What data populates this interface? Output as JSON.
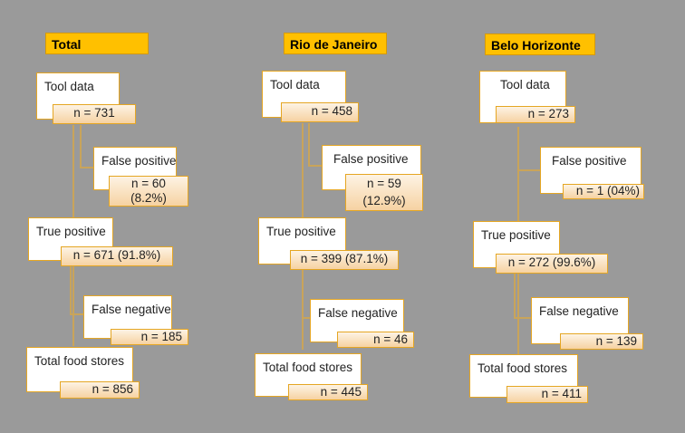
{
  "panels": [
    {
      "title": "Total",
      "tool_data": {
        "label": "Tool data",
        "count": "n = 731"
      },
      "false_positive": {
        "label": "False positive",
        "count_line1": "n = 60",
        "count_line2": "(8.2%)"
      },
      "true_positive": {
        "label": "True positive",
        "count": "n = 671 (91.8%)"
      },
      "false_negative": {
        "label": "False negative",
        "count": "n = 185"
      },
      "total_food_stores": {
        "label": "Total food stores",
        "count": "n = 856"
      }
    },
    {
      "title": "Rio de Janeiro",
      "tool_data": {
        "label": "Tool data",
        "count": "n = 458"
      },
      "false_positive": {
        "label": "False positive",
        "count_line1": "n = 59",
        "count_line2": "(12.9%)"
      },
      "true_positive": {
        "label": "True positive",
        "count": "n = 399 (87.1%)"
      },
      "false_negative": {
        "label": "False negative",
        "count": "n = 46"
      },
      "total_food_stores": {
        "label": "Total food stores",
        "count": "n = 445"
      }
    },
    {
      "title": "Belo Horizonte",
      "tool_data": {
        "label": "Tool data",
        "count": "n = 273"
      },
      "false_positive": {
        "label": "False positive",
        "count": "n = 1 (04%)"
      },
      "true_positive": {
        "label": "True positive",
        "count": "n = 272 (99.6%)"
      },
      "false_negative": {
        "label": "False negative",
        "count": "n = 139"
      },
      "total_food_stores": {
        "label": "Total food stores",
        "count": "n = 411"
      }
    }
  ],
  "colors": {
    "background": "#9a9a9a",
    "title_fill": "#ffc000",
    "box_border": "#e5a623",
    "connector": "#c9a45a"
  }
}
